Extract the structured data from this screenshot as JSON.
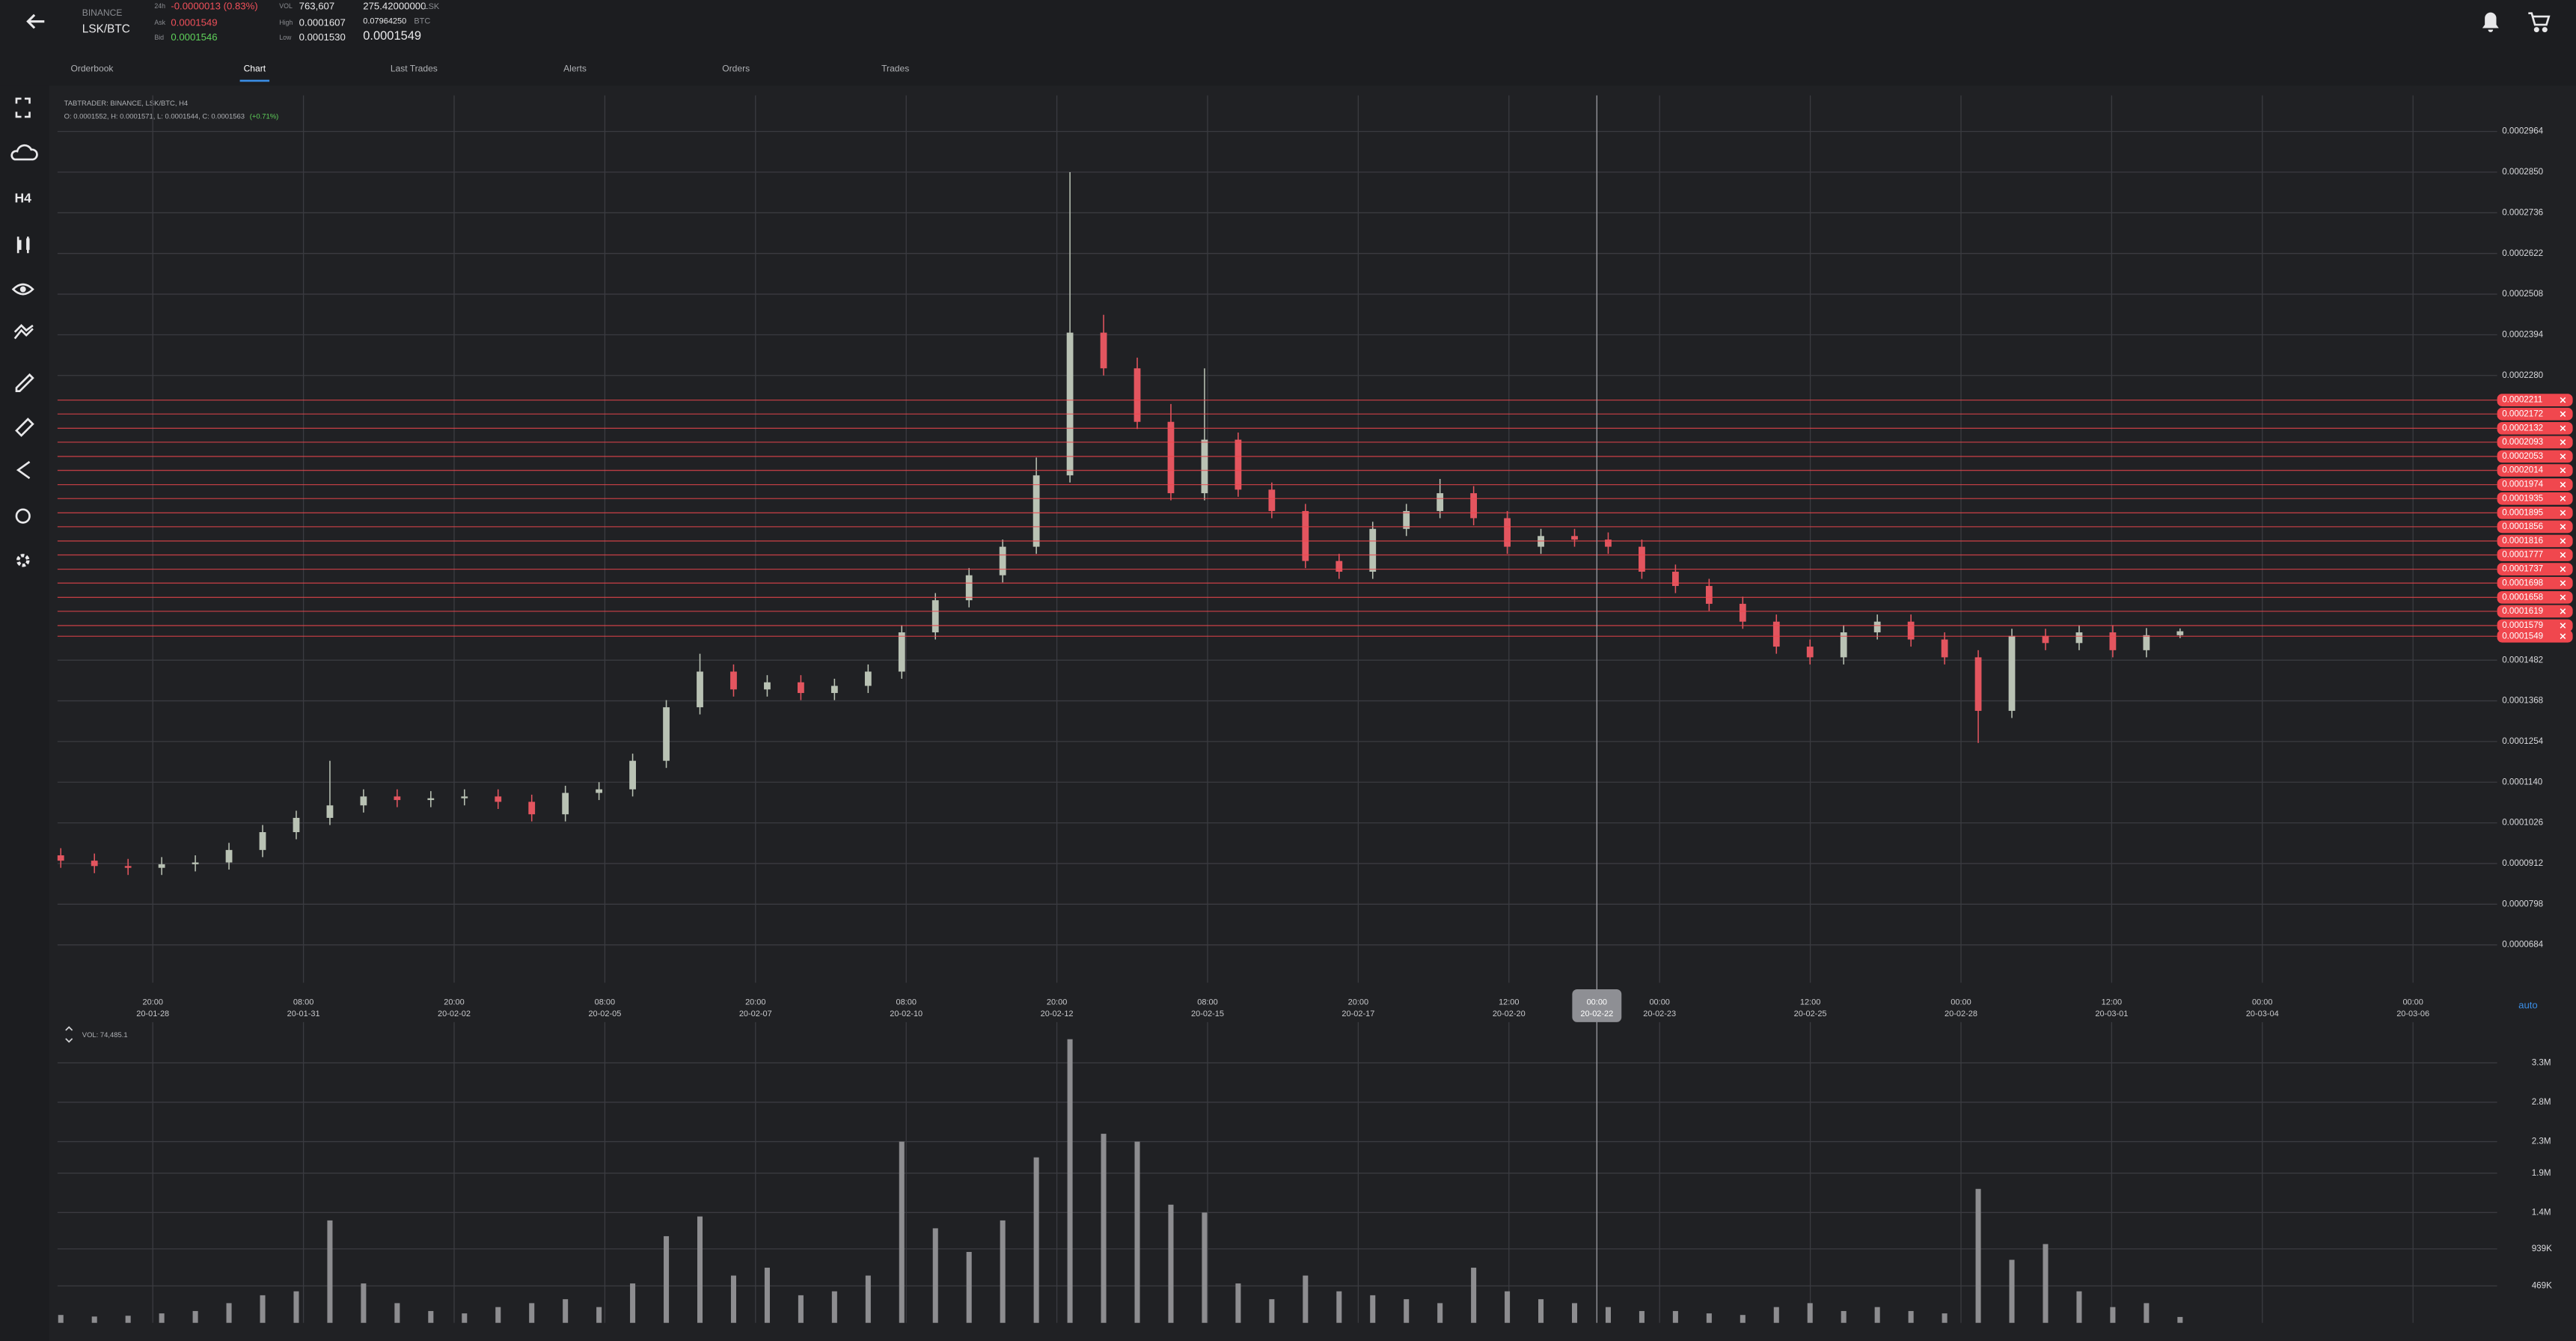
{
  "header": {
    "exchange": "BINANCE",
    "pair": "LSK/BTC",
    "change_label": "24h",
    "change": "-0.0000013 (0.83%)",
    "ask_label": "Ask",
    "ask": "0.0001549",
    "bid_label": "Bid",
    "bid": "0.0001546",
    "vol_label": "VOL",
    "vol": "763,607",
    "high_label": "High",
    "high": "0.0001607",
    "low_label": "Low",
    "low": "0.0001530",
    "base_volume": "275.42000000",
    "base_unit": "LSK",
    "quote_volume": "0.07964250",
    "quote_unit": "BTC",
    "last_price": "0.0001549"
  },
  "tabs": [
    "Orderbook",
    "Chart",
    "Last Trades",
    "Alerts",
    "Orders",
    "Trades"
  ],
  "active_tab": "Chart",
  "sidebar": {
    "timeframe": "H4"
  },
  "chart_data": [
    {
      "type": "candlestick",
      "title": "TABTRADER: BINANCE, LSK/BTC, H4",
      "subtitle": "O: 0.0001552, H: 0.0001571, L: 0.0001544, C: 0.0001563",
      "subtitle_change": "(+0.71%)",
      "open": [
        9.35e-05,
        9.2e-05,
        9.05e-05,
        9e-05,
        9.1e-05,
        9.15e-05,
        9.5e-05,
        0.0001,
        0.000104,
        0.0001075,
        0.00011,
        0.000109,
        0.0001095,
        0.00011,
        0.0001085,
        0.000105,
        0.000111,
        0.000112,
        0.00012,
        0.000135,
        0.000145,
        0.00014,
        0.000142,
        0.000139,
        0.000141,
        0.000145,
        0.000156,
        0.000165,
        0.000172,
        0.00018,
        0.0002,
        0.00024,
        0.00023,
        0.000215,
        0.000195,
        0.00021,
        0.000196,
        0.00019,
        0.000176,
        0.000173,
        0.000185,
        0.00019,
        0.000195,
        0.000188,
        0.00018,
        0.000183,
        0.000182,
        0.00018,
        0.000173,
        0.000169,
        0.000164,
        0.000159,
        0.000152,
        0.000149,
        0.000156,
        0.000159,
        0.000154,
        0.000149,
        0.000134,
        0.000155,
        0.000153,
        0.000156,
        0.000151,
        0.0001552
      ],
      "high": [
        9.55e-05,
        9.4e-05,
        9.25e-05,
        9.3e-05,
        9.35e-05,
        9.7e-05,
        0.000102,
        0.000106,
        0.00012,
        0.000112,
        0.000112,
        0.0001115,
        0.000112,
        0.000112,
        0.0001105,
        0.000113,
        0.000114,
        0.000122,
        0.000137,
        0.00015,
        0.000147,
        0.000144,
        0.000144,
        0.000143,
        0.000147,
        0.000158,
        0.000167,
        0.000174,
        0.000182,
        0.000205,
        0.000285,
        0.000245,
        0.000233,
        0.00022,
        0.00023,
        0.000212,
        0.000198,
        0.000192,
        0.000178,
        0.000187,
        0.000192,
        0.000199,
        0.000197,
        0.00019,
        0.000185,
        0.000185,
        0.000184,
        0.000182,
        0.000175,
        0.000171,
        0.000166,
        0.000161,
        0.000154,
        0.000158,
        0.000161,
        0.000161,
        0.000156,
        0.000151,
        0.000157,
        0.000157,
        0.000158,
        0.000158,
        0.0001572,
        0.0001571
      ],
      "low": [
        9e-05,
        8.85e-05,
        8.8e-05,
        8.8e-05,
        8.9e-05,
        8.95e-05,
        9.3e-05,
        9.8e-05,
        0.000102,
        0.0001055,
        0.000107,
        0.000107,
        0.0001075,
        0.0001065,
        0.000103,
        0.000103,
        0.000109,
        0.00011,
        0.000118,
        0.000133,
        0.000138,
        0.000138,
        0.000137,
        0.000137,
        0.000139,
        0.000143,
        0.000154,
        0.000163,
        0.00017,
        0.000178,
        0.000198,
        0.000228,
        0.000213,
        0.000193,
        0.000193,
        0.000194,
        0.000188,
        0.000174,
        0.000171,
        0.000171,
        0.000183,
        0.000188,
        0.000186,
        0.000178,
        0.000178,
        0.00018,
        0.000178,
        0.000171,
        0.000167,
        0.000162,
        0.000157,
        0.00015,
        0.000147,
        0.000147,
        0.000154,
        0.000152,
        0.000147,
        0.000125,
        0.000132,
        0.000151,
        0.000151,
        0.000149,
        0.000149,
        0.0001544
      ],
      "close": [
        9.2e-05,
        9.05e-05,
        9e-05,
        9.1e-05,
        9.15e-05,
        9.5e-05,
        0.0001,
        0.000104,
        0.0001075,
        0.00011,
        0.000109,
        0.0001095,
        0.00011,
        0.0001085,
        0.000105,
        0.000111,
        0.000112,
        0.00012,
        0.000135,
        0.000145,
        0.00014,
        0.000142,
        0.000139,
        0.000141,
        0.000145,
        0.000156,
        0.000165,
        0.000172,
        0.00018,
        0.0002,
        0.00024,
        0.00023,
        0.000215,
        0.000195,
        0.00021,
        0.000196,
        0.00019,
        0.000176,
        0.000173,
        0.000185,
        0.00019,
        0.000195,
        0.000188,
        0.00018,
        0.000183,
        0.000182,
        0.00018,
        0.000173,
        0.000169,
        0.000164,
        0.000159,
        0.000152,
        0.000149,
        0.000156,
        0.000159,
        0.000154,
        0.000149,
        0.000134,
        0.000155,
        0.000153,
        0.000156,
        0.000151,
        0.0001552,
        0.0001563
      ],
      "up_color": "#b9c2b4",
      "down_color": "#e3555f",
      "ylim": [
        5.78e-05,
        0.0003065
      ],
      "yticks": [
        0.0002964,
        {
          "value": 0.000285,
          "label": "0.0002850"
        },
        0.0002736,
        0.0002622,
        0.0002508,
        0.0002394,
        {
          "value": 0.000228,
          "label": "0.0002280"
        },
        0.0001482,
        0.0001368,
        0.0001254,
        {
          "value": 0.000114,
          "label": "0.0001140"
        },
        0.0001026,
        9.12e-05,
        7.98e-05,
        6.84e-05
      ],
      "grid": true,
      "xticks": [
        {
          "time": "20:00",
          "date": "20-01-28"
        },
        {
          "time": "08:00",
          "date": "20-01-31"
        },
        {
          "time": "20:00",
          "date": "20-02-02"
        },
        {
          "time": "08:00",
          "date": "20-02-05"
        },
        {
          "time": "20:00",
          "date": "20-02-07"
        },
        {
          "time": "08:00",
          "date": "20-02-10"
        },
        {
          "time": "20:00",
          "date": "20-02-12"
        },
        {
          "time": "08:00",
          "date": "20-02-15"
        },
        {
          "time": "20:00",
          "date": "20-02-17"
        },
        {
          "time": "12:00",
          "date": "20-02-20"
        },
        {
          "time": "00:00",
          "date": "20-02-23"
        },
        {
          "time": "12:00",
          "date": "20-02-25"
        },
        {
          "time": "00:00",
          "date": "20-02-28"
        },
        {
          "time": "12:00",
          "date": "20-03-01"
        },
        {
          "time": "00:00",
          "date": "20-03-04"
        },
        {
          "time": "00:00",
          "date": "20-03-06"
        }
      ],
      "crosshair": {
        "time": "00:00",
        "date": "20-02-22"
      },
      "order_lines": {
        "color": "#f0474e",
        "values": [
          0.0002211,
          0.0002172,
          0.0002132,
          0.0002093,
          0.0002053,
          0.0002014,
          0.0001974,
          0.0001935,
          0.0001895,
          0.0001856,
          0.0001816,
          0.0001777,
          0.0001737,
          0.0001698,
          0.0001658,
          0.0001619,
          0.0001579,
          0.0001549
        ]
      },
      "scale_mode": "auto"
    },
    {
      "type": "bar",
      "title": "VOL: 74,485.1",
      "values": [
        100000,
        80000,
        90000,
        120000,
        150000,
        250000,
        350000,
        400000,
        1300000,
        500000,
        250000,
        150000,
        120000,
        200000,
        250000,
        300000,
        200000,
        500000,
        1100000,
        1350000,
        600000,
        700000,
        350000,
        400000,
        600000,
        2300000,
        1200000,
        900000,
        1300000,
        2100000,
        3600000,
        2400000,
        2300000,
        1500000,
        1400000,
        500000,
        300000,
        600000,
        400000,
        350000,
        300000,
        250000,
        700000,
        400000,
        300000,
        250000,
        200000,
        150000,
        150000,
        120000,
        100000,
        200000,
        250000,
        150000,
        200000,
        150000,
        120000,
        1700000,
        800000,
        1000000,
        400000,
        200000,
        250000,
        74485.1
      ],
      "color": "#8d8d90",
      "ylim": [
        0,
        3650000
      ],
      "yticks": [
        {
          "value": 3300000,
          "label": "3.3M"
        },
        {
          "value": 2800000,
          "label": "2.8M"
        },
        {
          "value": 2300000,
          "label": "2.3M"
        },
        {
          "value": 1900000,
          "label": "1.9M"
        },
        {
          "value": 1400000,
          "label": "1.4M"
        },
        {
          "value": 939000,
          "label": "939K"
        },
        {
          "value": 469000,
          "label": "469K"
        }
      ],
      "grid": true
    }
  ]
}
